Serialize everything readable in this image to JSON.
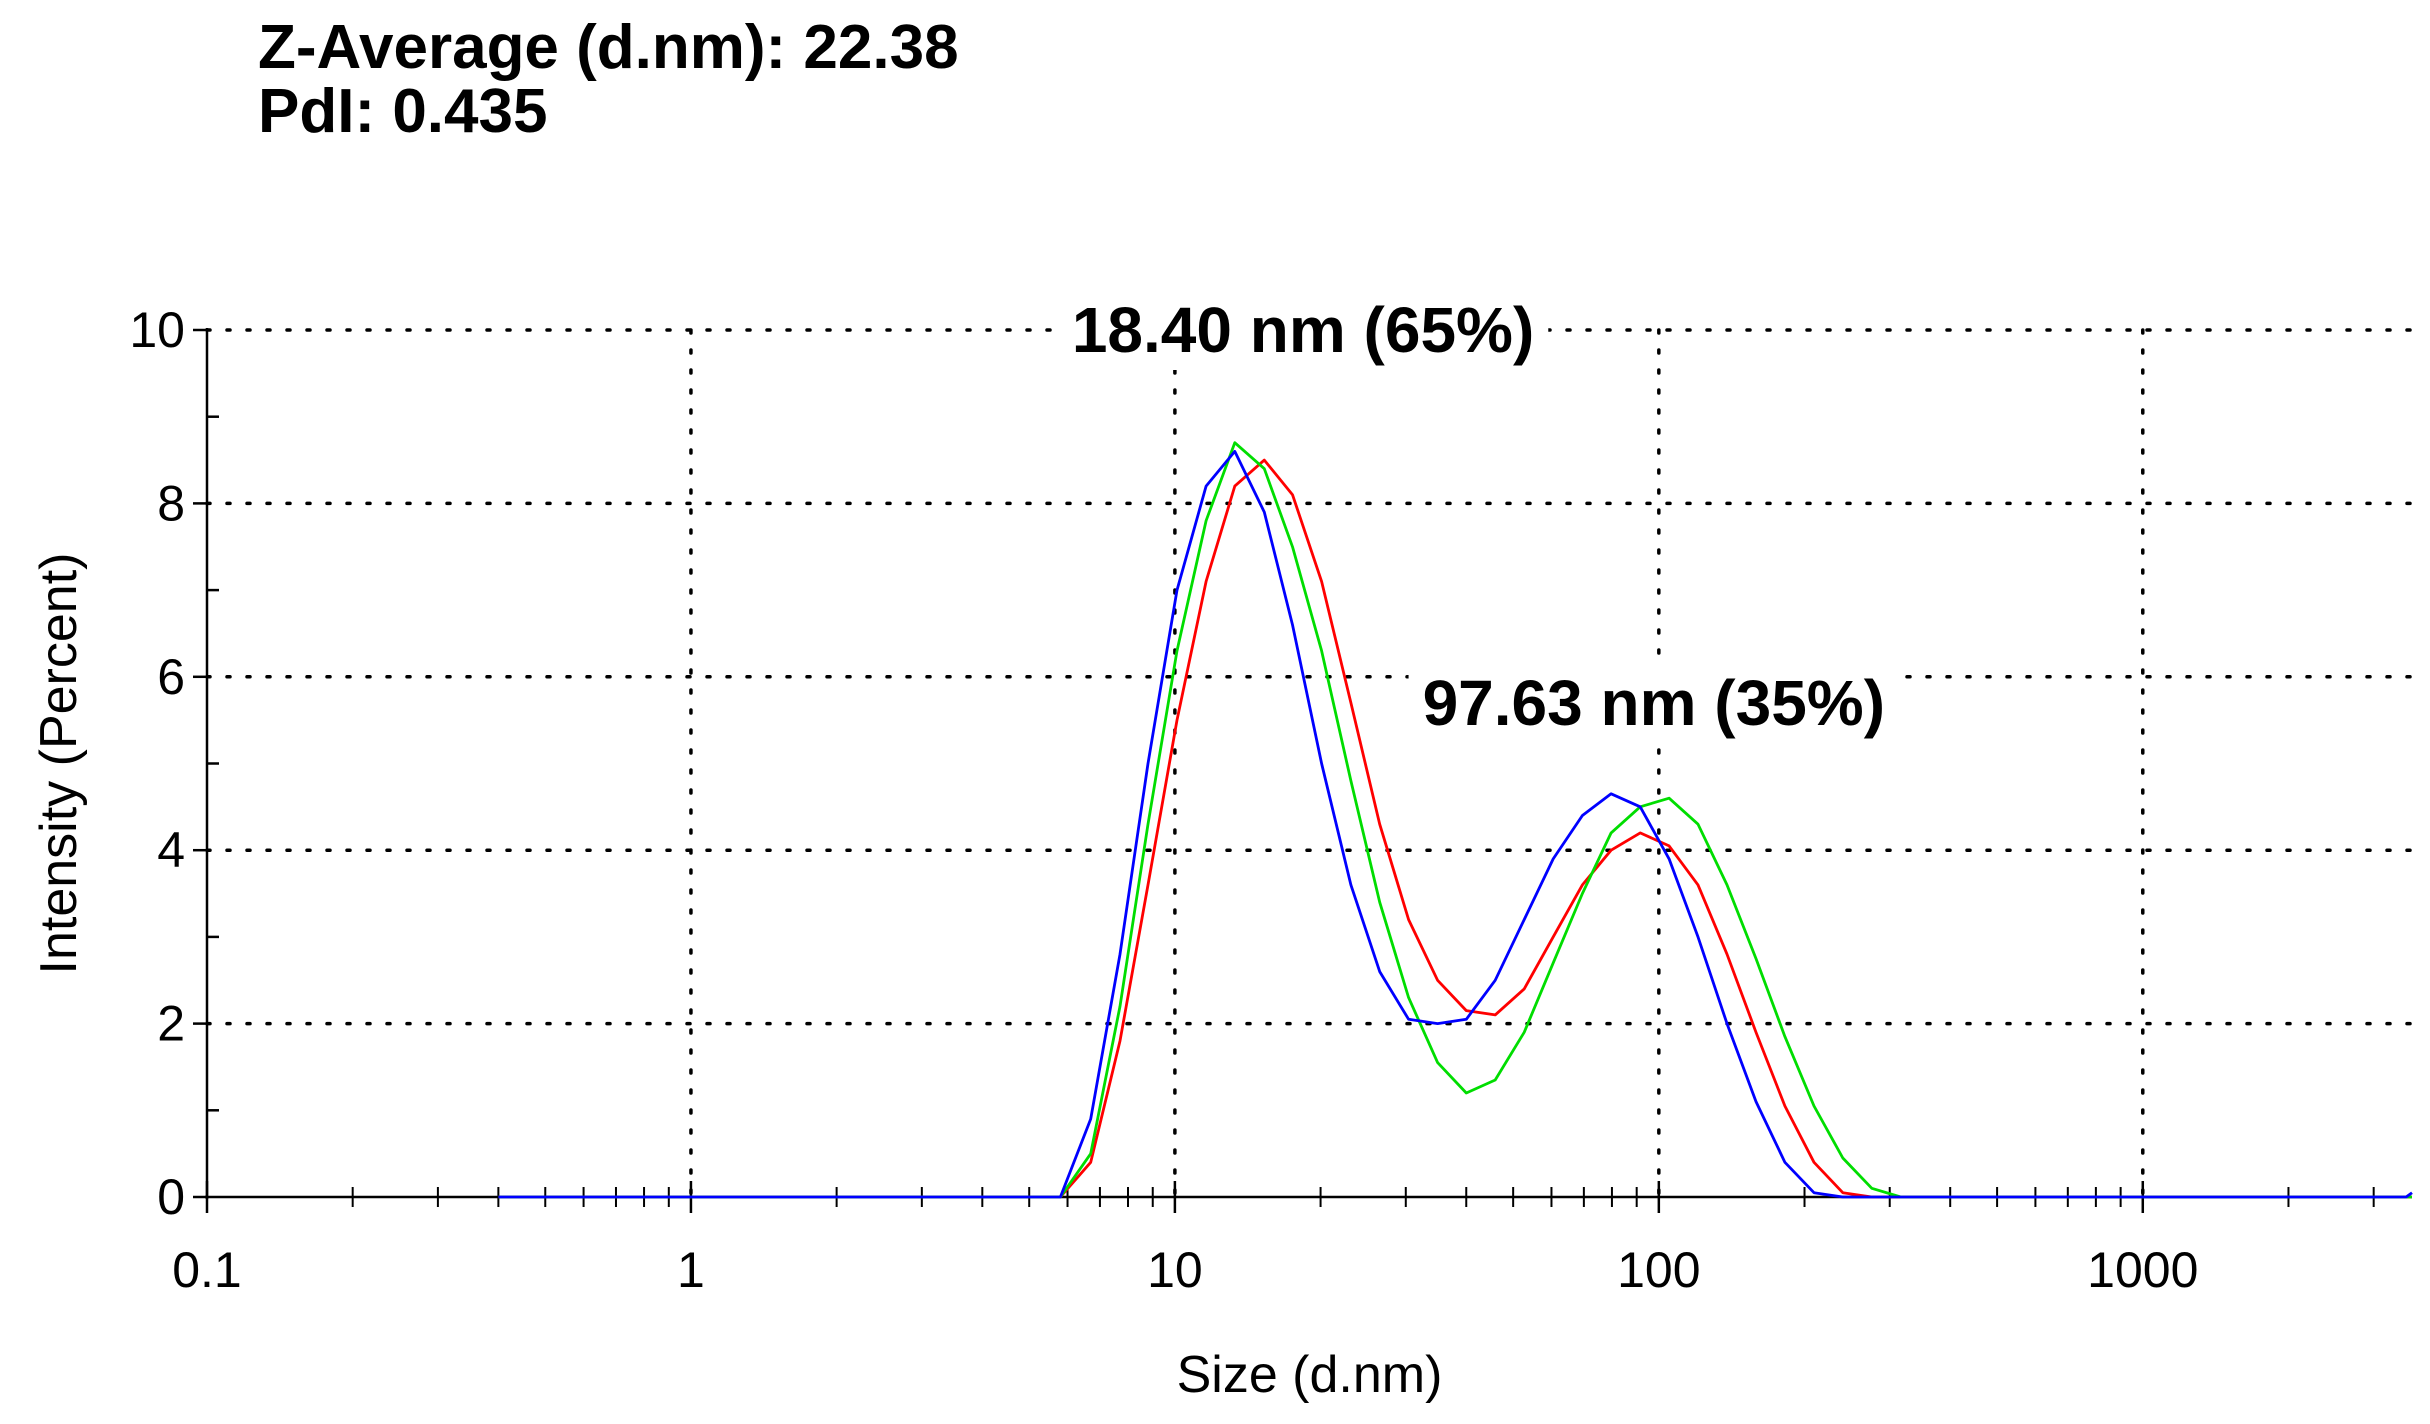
{
  "header": {
    "z_average": "Z-Average (d.nm): 22.38",
    "pdi": "PdI: 0.435"
  },
  "chart_data": {
    "type": "line",
    "xlabel": "Size (d.nm)",
    "ylabel": "Intensity (Percent)",
    "xscale": "log",
    "xlim": [
      0.1,
      3600
    ],
    "ylim": [
      0,
      10
    ],
    "x_ticks": [
      0.1,
      1,
      10,
      100,
      1000
    ],
    "x_tick_labels": [
      "0.1",
      "1",
      "10",
      "100",
      "1000"
    ],
    "y_ticks": [
      0,
      2,
      4,
      6,
      8,
      10
    ],
    "y_tick_labels": [
      "0",
      "2",
      "4",
      "6",
      "8",
      "10"
    ],
    "grid": "dotted",
    "annotations": [
      {
        "text": "18.40 nm (65%)",
        "x": 18.4,
        "y": 10
      },
      {
        "text": "97.63 nm (35%)",
        "x": 97.63,
        "y": 5.7
      }
    ],
    "series": [
      {
        "color": "#ff0000",
        "points": [
          [
            0.4,
            0
          ],
          [
            5.8,
            0
          ],
          [
            6.7,
            0.4
          ],
          [
            7.7,
            1.8
          ],
          [
            8.8,
            3.6
          ],
          [
            10.1,
            5.5
          ],
          [
            11.6,
            7.1
          ],
          [
            13.3,
            8.2
          ],
          [
            15.3,
            8.5
          ],
          [
            17.5,
            8.1
          ],
          [
            20.1,
            7.1
          ],
          [
            23.1,
            5.7
          ],
          [
            26.5,
            4.3
          ],
          [
            30.4,
            3.2
          ],
          [
            34.9,
            2.5
          ],
          [
            40,
            2.15
          ],
          [
            45.9,
            2.1
          ],
          [
            52.7,
            2.4
          ],
          [
            60.5,
            3.0
          ],
          [
            69.5,
            3.6
          ],
          [
            79.7,
            4.0
          ],
          [
            91.5,
            4.2
          ],
          [
            105,
            4.05
          ],
          [
            120.5,
            3.6
          ],
          [
            138.3,
            2.8
          ],
          [
            158.8,
            1.9
          ],
          [
            182.2,
            1.05
          ],
          [
            209.2,
            0.4
          ],
          [
            240,
            0.05
          ],
          [
            275.5,
            0
          ],
          [
            3600,
            0
          ]
        ]
      },
      {
        "color": "#00dd00",
        "points": [
          [
            0.4,
            0
          ],
          [
            5.8,
            0
          ],
          [
            6.7,
            0.5
          ],
          [
            7.7,
            2.2
          ],
          [
            8.8,
            4.3
          ],
          [
            10.1,
            6.3
          ],
          [
            11.6,
            7.8
          ],
          [
            13.3,
            8.7
          ],
          [
            15.3,
            8.4
          ],
          [
            17.5,
            7.5
          ],
          [
            20.1,
            6.3
          ],
          [
            23.1,
            4.8
          ],
          [
            26.5,
            3.4
          ],
          [
            30.4,
            2.3
          ],
          [
            34.9,
            1.55
          ],
          [
            40,
            1.2
          ],
          [
            45.9,
            1.35
          ],
          [
            52.7,
            1.9
          ],
          [
            60.5,
            2.7
          ],
          [
            69.5,
            3.5
          ],
          [
            79.7,
            4.2
          ],
          [
            91.5,
            4.5
          ],
          [
            105,
            4.6
          ],
          [
            120.5,
            4.3
          ],
          [
            138.3,
            3.6
          ],
          [
            158.8,
            2.75
          ],
          [
            182.2,
            1.85
          ],
          [
            209.2,
            1.05
          ],
          [
            240,
            0.45
          ],
          [
            275.5,
            0.1
          ],
          [
            316.2,
            0
          ],
          [
            3600,
            0
          ]
        ]
      },
      {
        "color": "#0000ff",
        "points": [
          [
            0.4,
            0
          ],
          [
            5.8,
            0
          ],
          [
            6.7,
            0.9
          ],
          [
            7.7,
            2.8
          ],
          [
            8.8,
            5.0
          ],
          [
            10.1,
            7.0
          ],
          [
            11.6,
            8.2
          ],
          [
            13.3,
            8.6
          ],
          [
            15.3,
            7.9
          ],
          [
            17.5,
            6.6
          ],
          [
            20.1,
            5.0
          ],
          [
            23.1,
            3.6
          ],
          [
            26.5,
            2.6
          ],
          [
            30.4,
            2.05
          ],
          [
            34.9,
            2.0
          ],
          [
            40,
            2.05
          ],
          [
            45.9,
            2.5
          ],
          [
            52.7,
            3.2
          ],
          [
            60.5,
            3.9
          ],
          [
            69.5,
            4.4
          ],
          [
            79.7,
            4.65
          ],
          [
            91.5,
            4.5
          ],
          [
            105,
            3.9
          ],
          [
            120.5,
            3.0
          ],
          [
            138.3,
            2.0
          ],
          [
            158.8,
            1.1
          ],
          [
            182.2,
            0.4
          ],
          [
            209.2,
            0.05
          ],
          [
            240,
            0
          ],
          [
            3500,
            0
          ],
          [
            3600,
            0.05
          ]
        ]
      }
    ]
  }
}
